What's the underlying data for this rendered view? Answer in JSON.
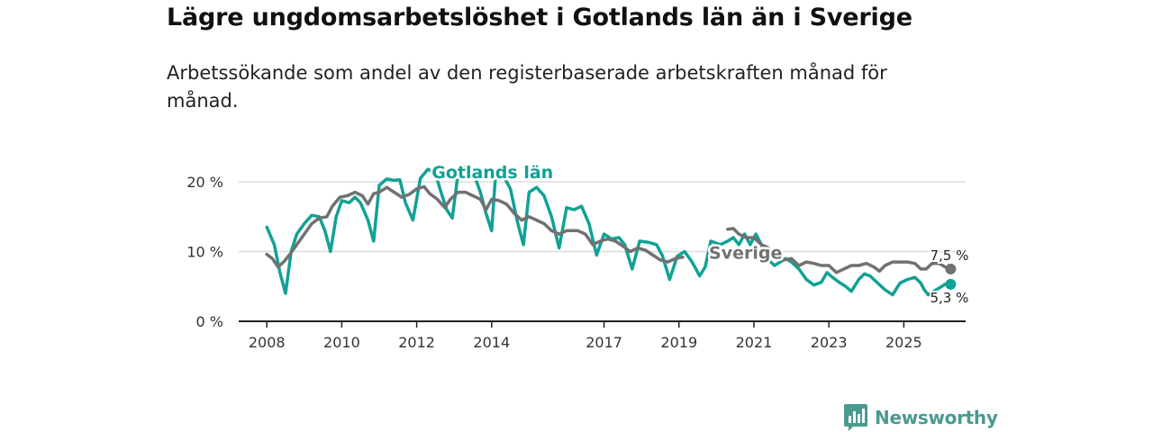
{
  "header": {
    "title": "Lägre ungdomsarbetslöshet i Gotlands län än i Sverige",
    "subtitle": "Arbetssökande som andel av den registerbaserade arbetskraften månad för månad."
  },
  "brand": {
    "name": "Newsworthy",
    "icon": "newsworthy-logo-icon"
  },
  "colors": {
    "gotland": "#12a195",
    "sverige": "#717171",
    "grid": "#dddddd",
    "axis": "#222222",
    "brand": "#4a9a90"
  },
  "chart_data": {
    "type": "line",
    "title": "Lägre ungdomsarbetslöshet i Gotlands län än i Sverige",
    "xlabel": "",
    "ylabel": "",
    "x_range": [
      2007.25,
      2026.65
    ],
    "ylim": [
      0,
      20
    ],
    "y_ticks": [
      0,
      10,
      20
    ],
    "y_tick_labels": [
      "0 %",
      "10 %",
      "20 %"
    ],
    "x_ticks": [
      2008,
      2010,
      2012,
      2014,
      2017,
      2019,
      2021,
      2023,
      2025
    ],
    "x_tick_labels": [
      "2008",
      "2010",
      "2012",
      "2014",
      "2017",
      "2019",
      "2021",
      "2023",
      "2025"
    ],
    "grid": true,
    "series": [
      {
        "name": "Gotlands län",
        "color": "#12a195",
        "label_at": [
          2012.4,
          20.5
        ],
        "end_label": "5,3 %",
        "points": [
          [
            2008.0,
            13.5
          ],
          [
            2008.2,
            11.0
          ],
          [
            2008.35,
            7.0
          ],
          [
            2008.5,
            4.0
          ],
          [
            2008.65,
            10.0
          ],
          [
            2008.8,
            12.5
          ],
          [
            2009.0,
            14.0
          ],
          [
            2009.2,
            15.2
          ],
          [
            2009.4,
            15.0
          ],
          [
            2009.55,
            13.0
          ],
          [
            2009.7,
            10.0
          ],
          [
            2009.85,
            15.0
          ],
          [
            2010.0,
            17.3
          ],
          [
            2010.2,
            17.0
          ],
          [
            2010.35,
            17.8
          ],
          [
            2010.5,
            17.0
          ],
          [
            2010.7,
            14.5
          ],
          [
            2010.85,
            11.5
          ],
          [
            2011.0,
            19.5
          ],
          [
            2011.2,
            20.4
          ],
          [
            2011.4,
            20.2
          ],
          [
            2011.55,
            20.3
          ],
          [
            2011.7,
            17.0
          ],
          [
            2011.9,
            14.5
          ],
          [
            2012.1,
            20.5
          ],
          [
            2012.3,
            21.8
          ],
          [
            2012.5,
            21.2
          ],
          [
            2012.65,
            18.5
          ],
          [
            2012.8,
            16.0
          ],
          [
            2012.95,
            14.8
          ],
          [
            2013.1,
            21.0
          ],
          [
            2013.3,
            22.2
          ],
          [
            2013.5,
            21.5
          ],
          [
            2013.7,
            18.5
          ],
          [
            2013.85,
            15.5
          ],
          [
            2014.0,
            13.0
          ],
          [
            2014.1,
            20.5
          ],
          [
            2014.3,
            21.0
          ],
          [
            2014.5,
            19.0
          ],
          [
            2014.7,
            14.0
          ],
          [
            2014.85,
            11.0
          ],
          [
            2015.0,
            18.5
          ],
          [
            2015.2,
            19.2
          ],
          [
            2015.4,
            18.0
          ],
          [
            2015.6,
            15.0
          ],
          [
            2015.8,
            10.5
          ],
          [
            2016.0,
            16.3
          ],
          [
            2016.2,
            16.0
          ],
          [
            2016.4,
            16.5
          ],
          [
            2016.6,
            14.0
          ],
          [
            2016.8,
            9.5
          ],
          [
            2017.0,
            12.5
          ],
          [
            2017.2,
            11.8
          ],
          [
            2017.4,
            12.0
          ],
          [
            2017.55,
            11.0
          ],
          [
            2017.75,
            7.5
          ],
          [
            2017.95,
            11.5
          ],
          [
            2018.2,
            11.3
          ],
          [
            2018.4,
            11.0
          ],
          [
            2018.55,
            9.5
          ],
          [
            2018.75,
            6.0
          ],
          [
            2018.95,
            9.3
          ],
          [
            2019.15,
            10.0
          ],
          [
            2019.35,
            8.5
          ],
          [
            2019.55,
            6.5
          ],
          [
            2019.7,
            7.8
          ],
          [
            2019.85,
            11.5
          ],
          [
            2020.1,
            11.0
          ],
          [
            2020.3,
            11.5
          ],
          [
            2020.45,
            12.0
          ],
          [
            2020.6,
            11.0
          ],
          [
            2020.75,
            12.5
          ],
          [
            2020.9,
            11.0
          ],
          [
            2021.05,
            12.5
          ],
          [
            2021.2,
            11.0
          ],
          [
            2021.35,
            9.0
          ],
          [
            2021.55,
            8.0
          ],
          [
            2021.7,
            8.5
          ],
          [
            2021.85,
            9.0
          ],
          [
            2022.0,
            8.5
          ],
          [
            2022.2,
            7.5
          ],
          [
            2022.4,
            6.0
          ],
          [
            2022.6,
            5.2
          ],
          [
            2022.8,
            5.6
          ],
          [
            2022.95,
            7.0
          ],
          [
            2023.1,
            6.3
          ],
          [
            2023.3,
            5.5
          ],
          [
            2023.45,
            5.0
          ],
          [
            2023.6,
            4.3
          ],
          [
            2023.8,
            6.0
          ],
          [
            2023.95,
            6.8
          ],
          [
            2024.1,
            6.5
          ],
          [
            2024.3,
            5.5
          ],
          [
            2024.5,
            4.5
          ],
          [
            2024.7,
            3.8
          ],
          [
            2024.9,
            5.5
          ],
          [
            2025.1,
            6.0
          ],
          [
            2025.3,
            6.3
          ],
          [
            2025.45,
            5.5
          ],
          [
            2025.55,
            4.5
          ],
          [
            2025.65,
            3.8
          ],
          [
            2025.95,
            4.8
          ],
          [
            2026.1,
            5.3
          ],
          [
            2026.25,
            5.3
          ]
        ]
      },
      {
        "name": "Sverige",
        "color": "#717171",
        "label_at": [
          2019.8,
          9.0
        ],
        "end_label": "7,5 %",
        "points": [
          [
            2008.0,
            9.6
          ],
          [
            2008.15,
            9.0
          ],
          [
            2008.3,
            7.8
          ],
          [
            2008.45,
            8.5
          ],
          [
            2008.6,
            9.5
          ],
          [
            2008.8,
            11.0
          ],
          [
            2009.0,
            12.5
          ],
          [
            2009.2,
            14.0
          ],
          [
            2009.4,
            14.8
          ],
          [
            2009.6,
            15.0
          ],
          [
            2009.75,
            16.5
          ],
          [
            2009.95,
            17.8
          ],
          [
            2010.15,
            18.0
          ],
          [
            2010.35,
            18.5
          ],
          [
            2010.55,
            18.0
          ],
          [
            2010.7,
            16.8
          ],
          [
            2010.85,
            18.3
          ],
          [
            2011.0,
            18.5
          ],
          [
            2011.2,
            19.2
          ],
          [
            2011.4,
            18.5
          ],
          [
            2011.6,
            17.8
          ],
          [
            2011.8,
            18.2
          ],
          [
            2012.0,
            19.0
          ],
          [
            2012.2,
            19.3
          ],
          [
            2012.35,
            18.3
          ],
          [
            2012.55,
            17.5
          ],
          [
            2012.75,
            16.3
          ],
          [
            2012.9,
            17.5
          ],
          [
            2013.1,
            18.5
          ],
          [
            2013.3,
            18.5
          ],
          [
            2013.5,
            18.0
          ],
          [
            2013.7,
            17.5
          ],
          [
            2013.85,
            16.0
          ],
          [
            2014.0,
            17.5
          ],
          [
            2014.2,
            17.3
          ],
          [
            2014.4,
            16.8
          ],
          [
            2014.6,
            15.5
          ],
          [
            2014.8,
            14.5
          ],
          [
            2015.0,
            15.0
          ],
          [
            2015.2,
            14.5
          ],
          [
            2015.4,
            14.0
          ],
          [
            2015.6,
            13.0
          ],
          [
            2015.8,
            12.5
          ],
          [
            2016.0,
            13.0
          ],
          [
            2016.3,
            13.0
          ],
          [
            2016.5,
            12.5
          ],
          [
            2016.7,
            11.0
          ],
          [
            2016.9,
            11.5
          ],
          [
            2017.1,
            11.8
          ],
          [
            2017.3,
            11.5
          ],
          [
            2017.5,
            10.8
          ],
          [
            2017.7,
            10.0
          ],
          [
            2017.9,
            10.5
          ],
          [
            2018.1,
            10.2
          ],
          [
            2018.3,
            9.5
          ],
          [
            2018.5,
            8.8
          ],
          [
            2018.7,
            8.5
          ],
          [
            2018.9,
            9.0
          ],
          [
            2019.1,
            9.2
          ],
          [
            2020.3,
            13.2
          ],
          [
            2020.45,
            13.3
          ],
          [
            2020.6,
            12.5
          ],
          [
            2020.8,
            12.0
          ],
          [
            2021.0,
            12.0
          ],
          [
            2021.2,
            11.0
          ],
          [
            2021.4,
            10.5
          ],
          [
            2021.6,
            9.5
          ],
          [
            2021.8,
            8.8
          ],
          [
            2022.0,
            9.0
          ],
          [
            2022.2,
            8.0
          ],
          [
            2022.4,
            8.5
          ],
          [
            2022.6,
            8.3
          ],
          [
            2022.8,
            8.0
          ],
          [
            2023.0,
            8.0
          ],
          [
            2023.2,
            7.0
          ],
          [
            2023.4,
            7.5
          ],
          [
            2023.6,
            8.0
          ],
          [
            2023.8,
            8.0
          ],
          [
            2024.0,
            8.3
          ],
          [
            2024.2,
            7.8
          ],
          [
            2024.35,
            7.2
          ],
          [
            2024.5,
            8.0
          ],
          [
            2024.7,
            8.5
          ],
          [
            2024.9,
            8.5
          ],
          [
            2025.1,
            8.5
          ],
          [
            2025.3,
            8.3
          ],
          [
            2025.45,
            7.5
          ],
          [
            2025.6,
            7.5
          ],
          [
            2025.75,
            8.3
          ],
          [
            2025.95,
            8.3
          ],
          [
            2026.1,
            7.8
          ],
          [
            2026.25,
            7.5
          ]
        ]
      }
    ]
  }
}
